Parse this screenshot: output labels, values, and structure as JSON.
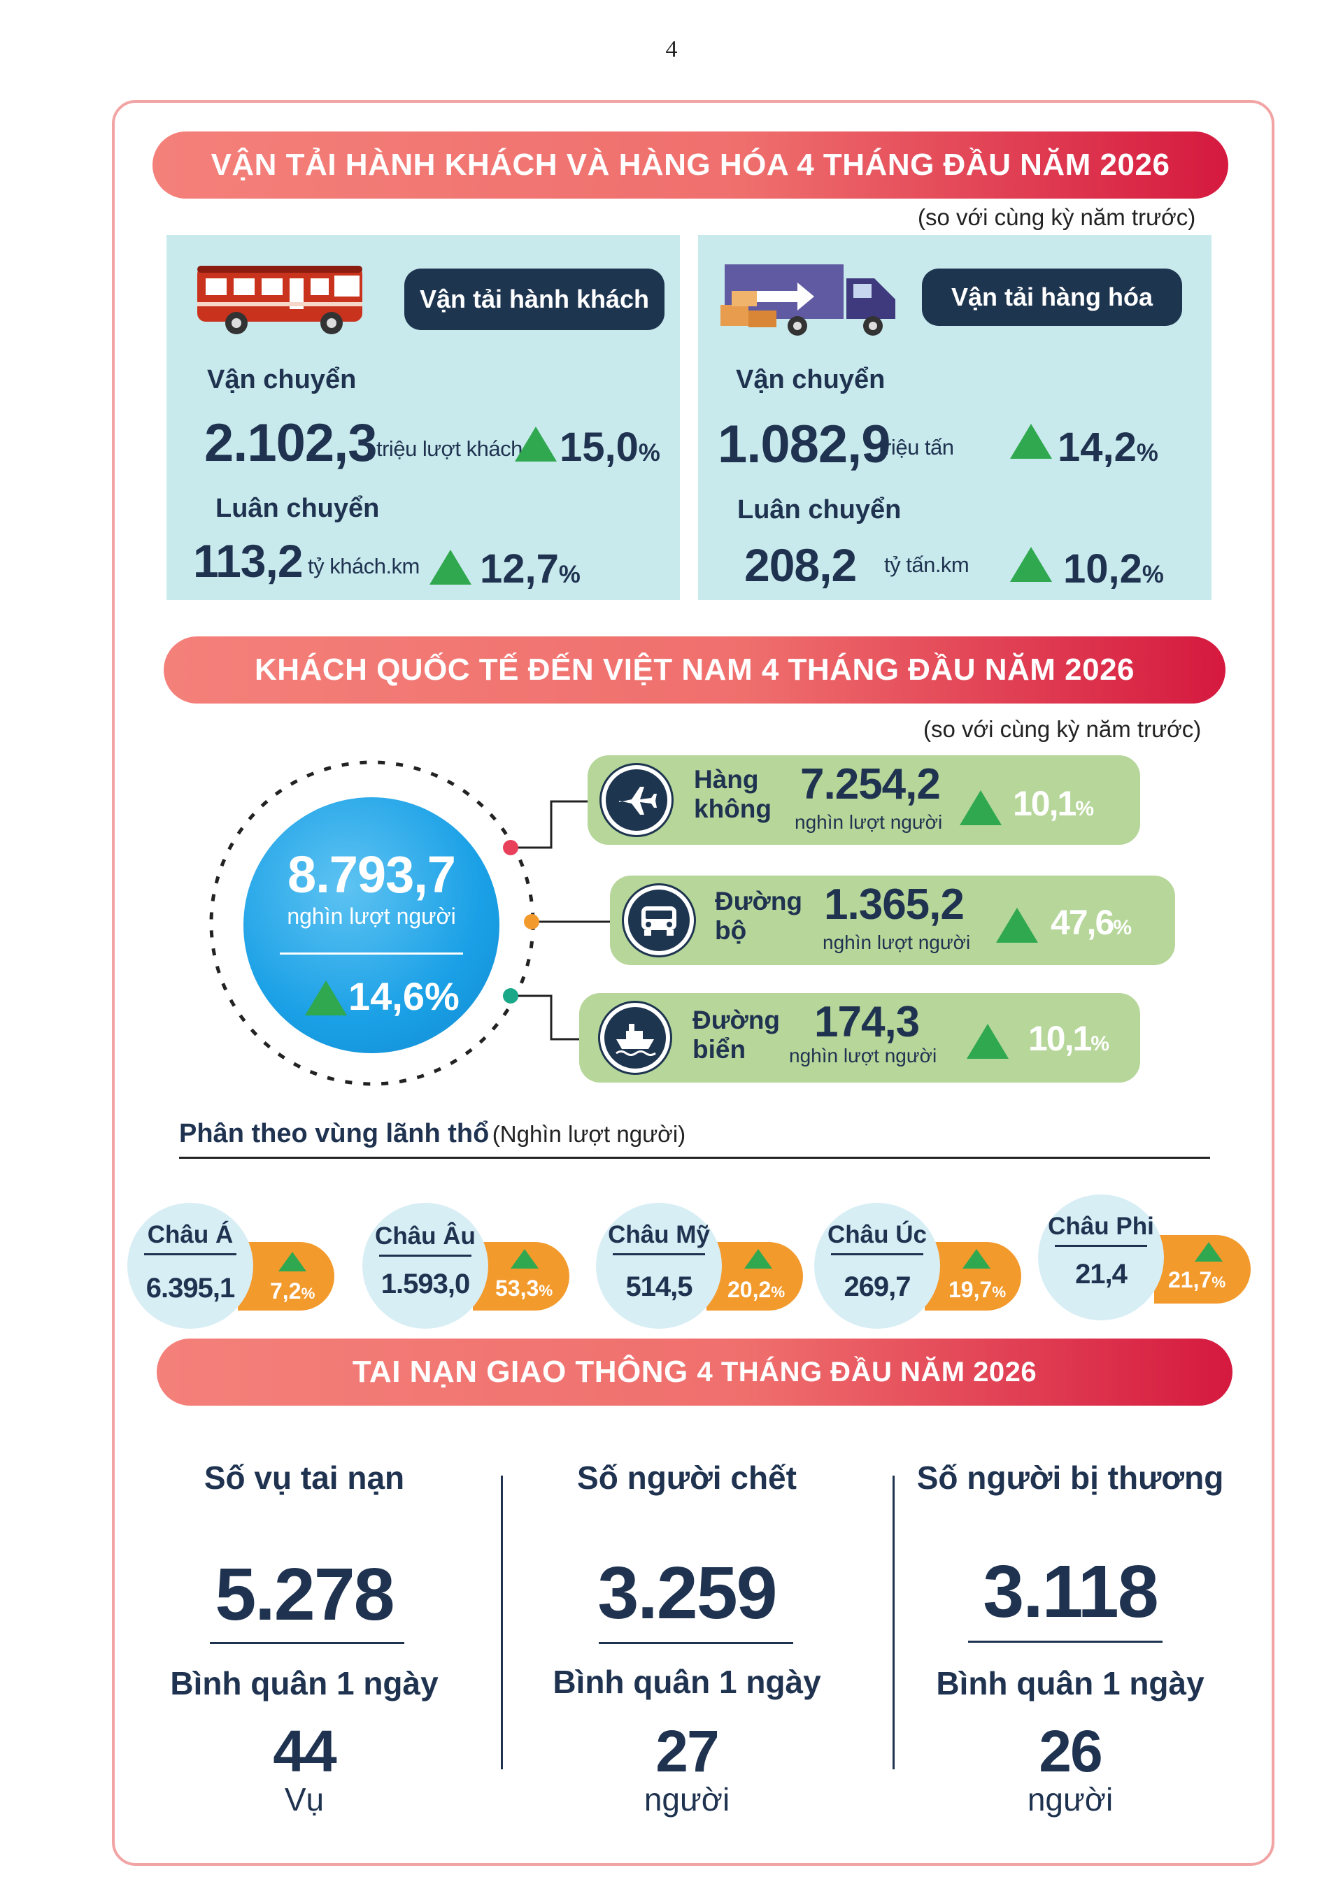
{
  "page_number": "4",
  "colors": {
    "banner_start": "#f4807a",
    "banner_end": "#d5193f",
    "navy": "#1e3550",
    "panel": "#c9eaed",
    "mode_panel": "#b6d69a",
    "up_arrow": "#2fa84f",
    "region_tag": "#f39a2d",
    "circle": "#1aa0e6"
  },
  "transport": {
    "title": "VẬN TẢI HÀNH KHÁCH VÀ HÀNG HÓA 4 THÁNG ĐẦU NĂM 2026",
    "note": "(so với cùng kỳ năm trước)",
    "passenger": {
      "icon": "bus-icon",
      "heading": "Vận tải hành khách",
      "carried_label": "Vận chuyển",
      "carried_value": "2.102,3",
      "carried_unit": "triệu lượt khách",
      "carried_pct": "15,0",
      "rotation_label": "Luân chuyển",
      "rotation_value": "113,2",
      "rotation_unit": "tỷ khách.km",
      "rotation_pct": "12,7"
    },
    "cargo": {
      "icon": "truck-icon",
      "heading": "Vận tải hàng hóa",
      "carried_label": "Vận chuyển",
      "carried_value": "1.082,9",
      "carried_unit": "triệu tấn",
      "carried_pct": "14,2",
      "rotation_label": "Luân chuyển",
      "rotation_value": "208,2",
      "rotation_unit": "tỷ tấn.km",
      "rotation_pct": "10,2"
    },
    "pct_sign": "%"
  },
  "visitors": {
    "title": "KHÁCH QUỐC TẾ ĐẾN VIỆT NAM 4 THÁNG ĐẦU NĂM 2026",
    "note": "(so với cùng kỳ năm trước)",
    "total_value": "8.793,7",
    "total_unit": "nghìn lượt người",
    "total_pct": "14,6%",
    "modes": [
      {
        "icon": "airplane-icon",
        "name_1": "Hàng",
        "name_2": "không",
        "value": "7.254,2",
        "unit": "nghìn lượt người",
        "pct": "10,1",
        "dot_color": "#e8405a"
      },
      {
        "icon": "car-icon",
        "name_1": "Đường",
        "name_2": "bộ",
        "value": "1.365,2",
        "unit": "nghìn lượt người",
        "pct": "47,6",
        "dot_color": "#f39a2d"
      },
      {
        "icon": "ship-icon",
        "name_1": "Đường",
        "name_2": "biển",
        "value": "174,3",
        "unit": "nghìn lượt người",
        "pct": "10,1",
        "dot_color": "#1aa889"
      }
    ],
    "region_title": "Phân theo vùng lãnh thổ",
    "region_unit": "(Nghìn lượt người)",
    "regions": [
      {
        "name": "Châu Á",
        "value": "6.395,1",
        "pct": "7,2"
      },
      {
        "name": "Châu Âu",
        "value": "1.593,0",
        "pct": "53,3"
      },
      {
        "name": "Châu Mỹ",
        "value": "514,5",
        "pct": "20,2"
      },
      {
        "name": "Châu Úc",
        "value": "269,7",
        "pct": "19,7"
      },
      {
        "name": "Châu Phi",
        "value": "21,4",
        "pct": "21,7"
      }
    ],
    "pct_sign": "%"
  },
  "accidents": {
    "title_main": "TAI NẠN GIAO THÔNG",
    "title_rest": "4 THÁNG ĐẦU NĂM 2026",
    "daily_label": "Bình quân 1 ngày",
    "items": [
      {
        "heading": "Số vụ tai nạn",
        "value": "5.278",
        "daily": "44",
        "daily_unit": "Vụ"
      },
      {
        "heading": "Số người chết",
        "value": "3.259",
        "daily": "27",
        "daily_unit": "người"
      },
      {
        "heading": "Số người bị thương",
        "value": "3.118",
        "daily": "26",
        "daily_unit": "người"
      }
    ]
  }
}
